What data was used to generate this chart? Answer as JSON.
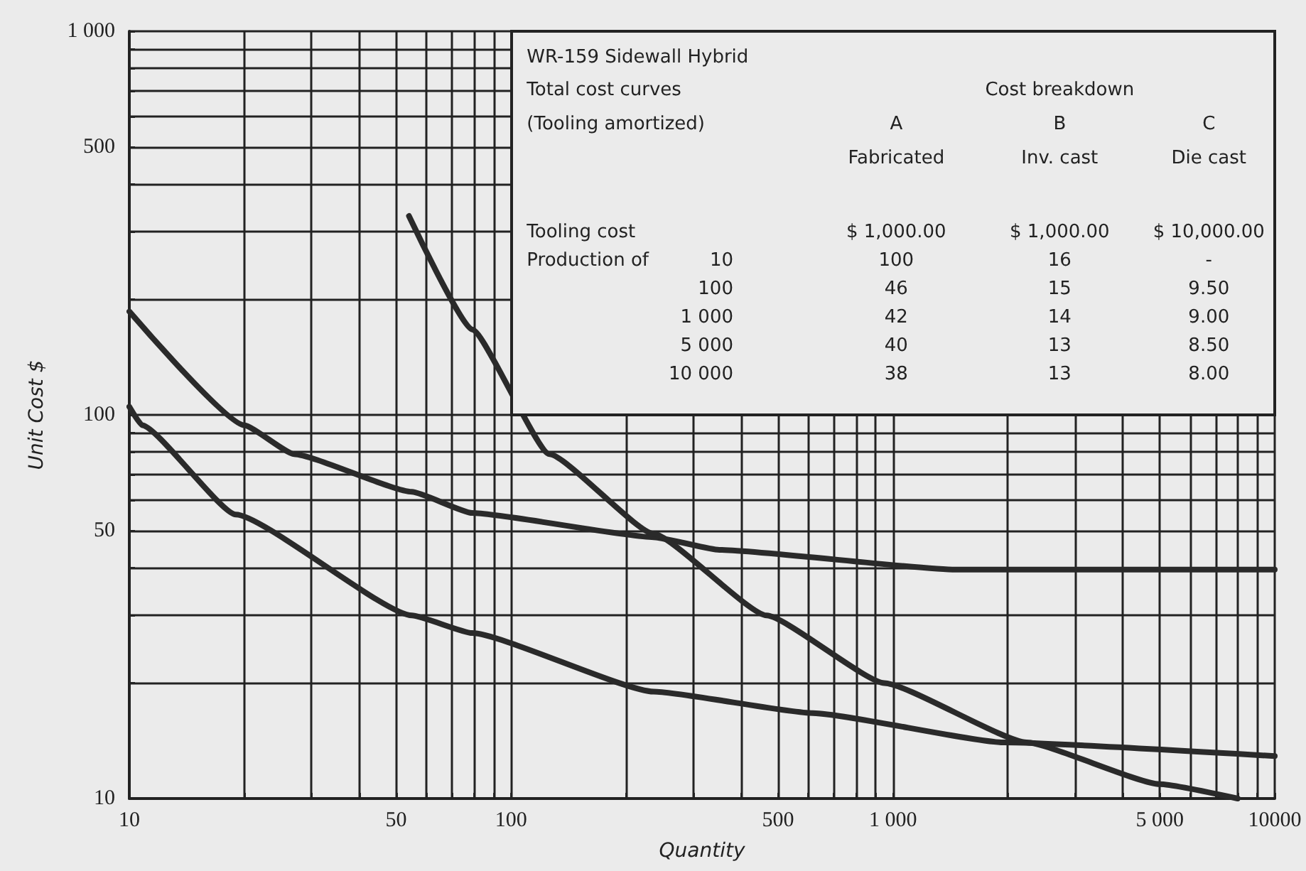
{
  "chart_data": {
    "type": "line",
    "xlabel": "Quantity",
    "ylabel": "Unit Cost $",
    "log": "xy",
    "grid": true,
    "marker": "none",
    "line_style": "solid",
    "xlim": [
      10,
      10000
    ],
    "ylim": [
      10,
      1000
    ],
    "xticks": [
      10,
      {
        "value": 20,
        "label": null
      },
      {
        "value": 30,
        "label": null
      },
      {
        "value": 40,
        "label": null
      },
      50,
      {
        "value": 60,
        "label": null
      },
      {
        "value": 70,
        "label": null
      },
      {
        "value": 80,
        "label": null
      },
      {
        "value": 90,
        "label": null
      },
      100,
      {
        "value": 200,
        "label": null
      },
      {
        "value": 300,
        "label": null
      },
      {
        "value": 400,
        "label": null
      },
      500,
      {
        "value": 600,
        "label": null
      },
      {
        "value": 700,
        "label": null
      },
      {
        "value": 800,
        "label": null
      },
      {
        "value": 900,
        "label": null
      },
      {
        "value": 1000,
        "label": "1 000"
      },
      {
        "value": 2000,
        "label": null
      },
      {
        "value": 3000,
        "label": null
      },
      {
        "value": 4000,
        "label": null
      },
      {
        "value": 5000,
        "label": "5 000"
      },
      {
        "value": 6000,
        "label": null
      },
      {
        "value": 7000,
        "label": null
      },
      {
        "value": 8000,
        "label": null
      },
      {
        "value": 9000,
        "label": null
      },
      10000
    ],
    "yticks": [
      10,
      {
        "value": 20,
        "label": null
      },
      {
        "value": 30,
        "label": null
      },
      {
        "value": 40,
        "label": null
      },
      50,
      {
        "value": 60,
        "label": null
      },
      {
        "value": 70,
        "label": null
      },
      {
        "value": 80,
        "label": null
      },
      {
        "value": 90,
        "label": null
      },
      100,
      {
        "value": 200,
        "label": null
      },
      {
        "value": 300,
        "label": null
      },
      {
        "value": 400,
        "label": null
      },
      500,
      {
        "value": 600,
        "label": null
      },
      {
        "value": 700,
        "label": null
      },
      {
        "value": 800,
        "label": null
      },
      {
        "value": 900,
        "label": null
      },
      {
        "value": 1000,
        "label": "1 000"
      }
    ],
    "series": [
      {
        "color": "#2a2a2a",
        "x": [
          10,
          20,
          27,
          55,
          79,
          236,
          351,
          1460,
          10000
        ],
        "values": [
          186,
          94,
          79,
          63,
          55.5,
          48,
          44.5,
          39.5,
          39.5
        ]
      },
      {
        "color": "#2a2a2a",
        "x": [
          10,
          10.8,
          19,
          55,
          79,
          236,
          617,
          1950,
          10000
        ],
        "values": [
          105,
          94,
          55,
          30,
          27,
          19,
          16.7,
          14,
          12.9
        ]
      },
      {
        "color": "#2a2a2a",
        "x": [
          54,
          79,
          126,
          236,
          467,
          950,
          2240,
          5000,
          8000
        ],
        "values": [
          330,
          167,
          79,
          49,
          30,
          20,
          14,
          10.9,
          10
        ]
      }
    ],
    "annotations": [
      "WR-159 Sidewall Hybrid",
      "Total cost curves",
      "Cost breakdown",
      "(Tooling amortized)",
      "A",
      "B",
      "C",
      "Fabricated",
      "Inv. cast",
      "Die cast",
      "Tooling cost",
      "$ 1,000.00",
      "$ 1,000.00",
      "$ 10,000.00",
      "Production of",
      "10",
      "100",
      "16",
      "-",
      "100",
      "46",
      "15",
      "9.50",
      "1 000",
      "42",
      "14",
      "9.00",
      "5 000",
      "40",
      "13",
      "8.50",
      "10 000",
      "38",
      "13",
      "8.00"
    ]
  }
}
